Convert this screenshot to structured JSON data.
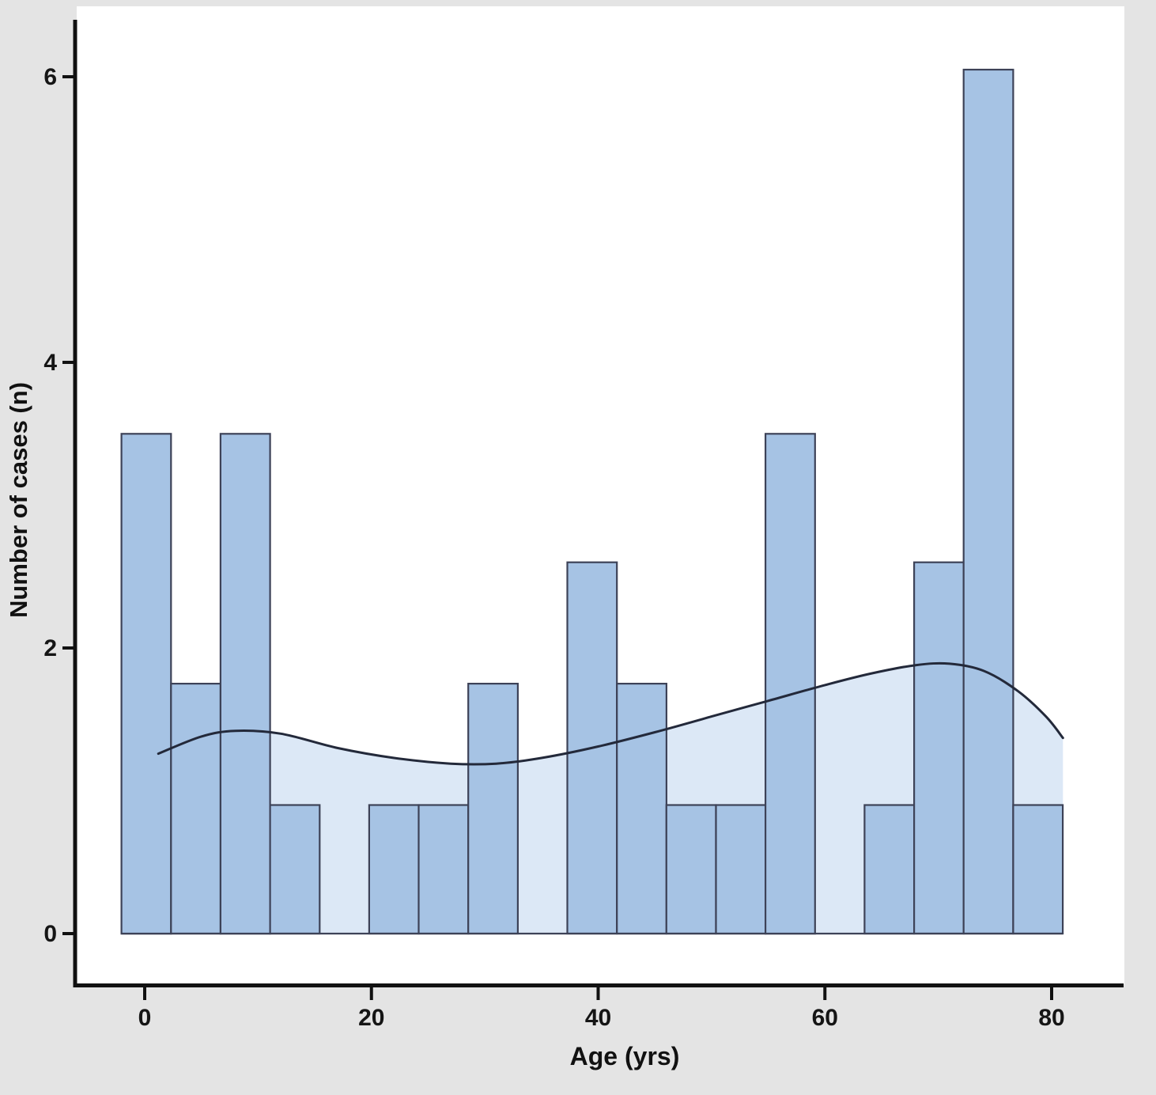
{
  "chart_data": {
    "type": "bar",
    "subtype": "histogram-with-density-curve",
    "title": "",
    "xlabel": "Age (yrs)",
    "ylabel": "Number of cases (n)",
    "x_ticks": [
      0,
      20,
      40,
      60,
      80
    ],
    "y_ticks": [
      0,
      2,
      4,
      6
    ],
    "xlim": [
      -6,
      86.4
    ],
    "ylim": [
      -0.35,
      6.49
    ],
    "grid": false,
    "legend": false,
    "histogram": {
      "bin_start": -2.05,
      "bin_width": 4.37,
      "values": [
        3.5,
        1.75,
        3.5,
        0.9,
        0,
        0.9,
        0.9,
        1.75,
        0,
        2.6,
        1.75,
        0.9,
        0.9,
        3.5,
        0,
        0.9,
        2.6,
        6.05,
        0.9
      ]
    },
    "density_curve": {
      "x": [
        1.2,
        5,
        8,
        12,
        17,
        22,
        27,
        31,
        35,
        40,
        45,
        50,
        55,
        60,
        64,
        68,
        71,
        74,
        77,
        79.5,
        81
      ],
      "y": [
        1.26,
        1.38,
        1.42,
        1.4,
        1.3,
        1.23,
        1.19,
        1.19,
        1.23,
        1.31,
        1.41,
        1.52,
        1.63,
        1.74,
        1.82,
        1.88,
        1.89,
        1.84,
        1.7,
        1.52,
        1.37
      ]
    },
    "colors": {
      "canvas_background": "#e4e4e4",
      "panel_background": "#ffffff",
      "bar_fill": "#a6c3e4",
      "bar_border": "#3d4257",
      "density_area_fill": "#dce8f6",
      "density_line": "#23293a",
      "axis_line": "#111111",
      "tick_text": "#151515"
    }
  }
}
